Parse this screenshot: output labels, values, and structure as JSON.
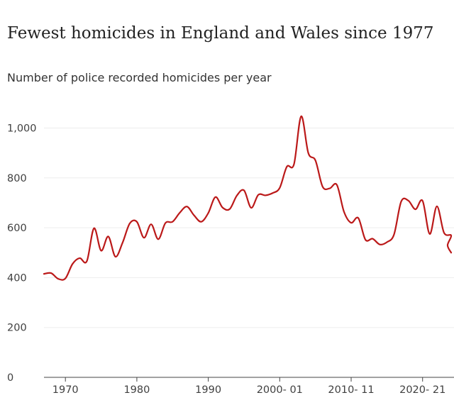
{
  "chart_data": {
    "type": "line",
    "title": "Fewest homicides in England and Wales since 1977",
    "subtitle": "Number of police recorded homicides per year",
    "xlabel": "",
    "ylabel": "",
    "ylim": [
      0,
      1100
    ],
    "yticks": [
      0,
      200,
      400,
      600,
      800,
      1000
    ],
    "ytick_labels": [
      "0",
      "200",
      "400",
      "600",
      "800",
      "1,000"
    ],
    "xtick_labels": [
      "1970",
      "1980",
      "1990",
      "2000- 01",
      "2010- 11",
      "2020- 21"
    ],
    "xtick_positions": [
      1970,
      1980,
      1990,
      2000,
      2010,
      2020
    ],
    "xlim": [
      1967,
      2024
    ],
    "series": [
      {
        "name": "Police recorded homicides",
        "color": "#bb1919",
        "x": [
          1967,
          1968,
          1969,
          1970,
          1971,
          1972,
          1973,
          1974,
          1975,
          1976,
          1977,
          1978,
          1979,
          1980,
          1981,
          1982,
          1983,
          1984,
          1985,
          1986,
          1987,
          1988,
          1989,
          1990,
          1991,
          1992,
          1993,
          1994,
          1995,
          1996,
          1997,
          1998,
          1999,
          2000,
          2001,
          2002,
          2003,
          2004,
          2005,
          2006,
          2007,
          2008,
          2009,
          2010,
          2011,
          2012,
          2013,
          2014,
          2015,
          2016,
          2017,
          2018,
          2019,
          2020,
          2021,
          2022,
          2023,
          2024
        ],
        "values": [
          415,
          418,
          395,
          397,
          455,
          478,
          466,
          598,
          508,
          565,
          484,
          540,
          617,
          624,
          560,
          614,
          554,
          619,
          624,
          660,
          685,
          650,
          624,
          659,
          723,
          681,
          675,
          729,
          750,
          680,
          732,
          730,
          739,
          760,
          845,
          855,
          1047,
          900,
          870,
          765,
          758,
          772,
          664,
          620,
          639,
          552,
          556,
          533,
          542,
          573,
          705,
          709,
          674,
          708,
          575,
          686,
          580,
          569
        ],
        "tail": [
          [
            2023.5,
            530
          ],
          [
            2024,
            500
          ]
        ]
      }
    ]
  }
}
